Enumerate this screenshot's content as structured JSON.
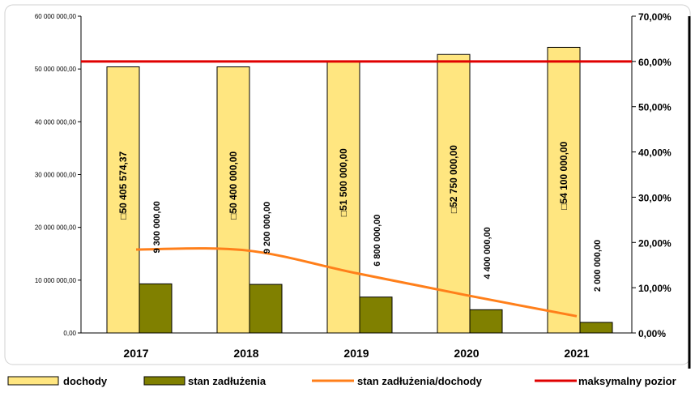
{
  "chart_data": {
    "type": "bar",
    "categories": [
      "2017",
      "2018",
      "2019",
      "2020",
      "2021"
    ],
    "y_left": {
      "min": 0,
      "max": 60000000,
      "ticks": [
        0,
        10000000,
        20000000,
        30000000,
        40000000,
        50000000,
        60000000
      ],
      "tick_labels": [
        "0,00",
        "10 000 000,00",
        "20 000 000,00",
        "30 000 000,00",
        "40 000 000,00",
        "50 000 000,00",
        "60 000 000,00"
      ]
    },
    "y_right": {
      "min": 0,
      "max": 0.7,
      "ticks": [
        0,
        0.1,
        0.2,
        0.3,
        0.4,
        0.5,
        0.6,
        0.7
      ],
      "tick_labels": [
        "0,00%",
        "10,00%",
        "20,00%",
        "30,00%",
        "40,00%",
        "50,00%",
        "60,00%",
        "70,00%"
      ]
    },
    "series": [
      {
        "name": "dochody",
        "kind": "bar",
        "axis": "left",
        "color": "#FFE680",
        "values": [
          50405574.37,
          50400000,
          51500000,
          52750000,
          54100000
        ],
        "labels": [
          "□50 405 574,37",
          "□50 400 000,00",
          "□51 500 000,00",
          "□52 750 000,00",
          "□54 100 000,00"
        ]
      },
      {
        "name": "stan zadłużenia",
        "kind": "bar",
        "axis": "left",
        "color": "#808000",
        "values": [
          9300000,
          9200000,
          6800000,
          4400000,
          2000000
        ],
        "labels": [
          "9 300 000,00",
          "9 200 000,00",
          "6 800 000,00",
          "4 400 000,00",
          "2 000 000,00"
        ]
      },
      {
        "name": "stan zadłużenia/dochody",
        "kind": "line",
        "axis": "right",
        "color": "#FF7F1A",
        "values": [
          0.1845,
          0.1825,
          0.132,
          0.0834,
          0.037
        ]
      },
      {
        "name": "maksymalny pozior",
        "kind": "hline",
        "axis": "right",
        "color": "#E00000",
        "values": [
          0.6,
          0.6,
          0.6,
          0.6,
          0.6
        ]
      }
    ]
  }
}
